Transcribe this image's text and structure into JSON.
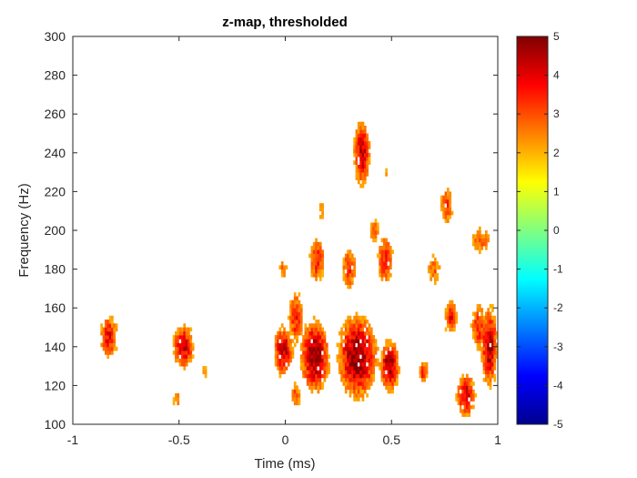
{
  "chart_data": {
    "type": "heatmap",
    "title": "z-map, thresholded",
    "xlabel": "Time (ms)",
    "ylabel": "Frequency (Hz)",
    "xlim": [
      -1,
      1
    ],
    "ylim": [
      100,
      300
    ],
    "x_ticks": [
      {
        "value": -1,
        "label": "-1"
      },
      {
        "value": -0.5,
        "label": "-0.5"
      },
      {
        "value": 0,
        "label": "0"
      },
      {
        "value": 0.5,
        "label": "0.5"
      },
      {
        "value": 1,
        "label": "1"
      }
    ],
    "y_ticks": [
      {
        "value": 100,
        "label": "100"
      },
      {
        "value": 120,
        "label": "120"
      },
      {
        "value": 140,
        "label": "140"
      },
      {
        "value": 160,
        "label": "160"
      },
      {
        "value": 180,
        "label": "180"
      },
      {
        "value": 200,
        "label": "200"
      },
      {
        "value": 220,
        "label": "220"
      },
      {
        "value": 240,
        "label": "240"
      },
      {
        "value": 260,
        "label": "260"
      },
      {
        "value": 280,
        "label": "280"
      },
      {
        "value": 300,
        "label": "300"
      }
    ],
    "colormap": "jet",
    "color_limits": [
      -5,
      5
    ],
    "colorbar_ticks": [
      {
        "value": 5,
        "label": "5"
      },
      {
        "value": 4,
        "label": "4"
      },
      {
        "value": 3,
        "label": "3"
      },
      {
        "value": 2,
        "label": "2"
      },
      {
        "value": 1,
        "label": "1"
      },
      {
        "value": 0,
        "label": "0"
      },
      {
        "value": -1,
        "label": "-1"
      },
      {
        "value": -2,
        "label": "-2"
      },
      {
        "value": -3,
        "label": "-3"
      },
      {
        "value": -4,
        "label": "-4"
      },
      {
        "value": -5,
        "label": "-5"
      }
    ],
    "threshold_note_color": "#ffffff",
    "clusters": [
      {
        "t": -0.83,
        "f": 145,
        "st": 0.035,
        "sf": 9,
        "peak": 3.8
      },
      {
        "t": -0.48,
        "f": 140,
        "st": 0.04,
        "sf": 9,
        "peak": 4.2
      },
      {
        "t": -0.38,
        "f": 127,
        "st": 0.015,
        "sf": 4,
        "peak": 2.6
      },
      {
        "t": -0.51,
        "f": 113,
        "st": 0.02,
        "sf": 5,
        "peak": 2.5
      },
      {
        "t": -0.01,
        "f": 180,
        "st": 0.025,
        "sf": 6,
        "peak": 2.6
      },
      {
        "t": -0.01,
        "f": 138,
        "st": 0.035,
        "sf": 10,
        "peak": 4.4
      },
      {
        "t": 0.05,
        "f": 155,
        "st": 0.03,
        "sf": 12,
        "peak": 3.5
      },
      {
        "t": 0.14,
        "f": 135,
        "st": 0.05,
        "sf": 14,
        "peak": 5.0
      },
      {
        "t": 0.15,
        "f": 185,
        "st": 0.03,
        "sf": 10,
        "peak": 3.6
      },
      {
        "t": 0.17,
        "f": 210,
        "st": 0.015,
        "sf": 6,
        "peak": 2.4
      },
      {
        "t": 0.05,
        "f": 115,
        "st": 0.02,
        "sf": 6,
        "peak": 3.0
      },
      {
        "t": 0.34,
        "f": 135,
        "st": 0.07,
        "sf": 16,
        "peak": 5.0
      },
      {
        "t": 0.36,
        "f": 240,
        "st": 0.03,
        "sf": 13,
        "peak": 4.4
      },
      {
        "t": 0.47,
        "f": 230,
        "st": 0.012,
        "sf": 4,
        "peak": 2.3
      },
      {
        "t": 0.3,
        "f": 180,
        "st": 0.03,
        "sf": 10,
        "peak": 3.3
      },
      {
        "t": 0.47,
        "f": 185,
        "st": 0.03,
        "sf": 11,
        "peak": 3.6
      },
      {
        "t": 0.42,
        "f": 200,
        "st": 0.025,
        "sf": 6,
        "peak": 2.8
      },
      {
        "t": 0.49,
        "f": 130,
        "st": 0.035,
        "sf": 10,
        "peak": 4.8
      },
      {
        "t": 0.65,
        "f": 127,
        "st": 0.02,
        "sf": 5,
        "peak": 3.6
      },
      {
        "t": 0.76,
        "f": 213,
        "st": 0.025,
        "sf": 9,
        "peak": 3.3
      },
      {
        "t": 0.7,
        "f": 180,
        "st": 0.03,
        "sf": 8,
        "peak": 2.8
      },
      {
        "t": 0.78,
        "f": 155,
        "st": 0.025,
        "sf": 8,
        "peak": 3.7
      },
      {
        "t": 0.85,
        "f": 115,
        "st": 0.035,
        "sf": 9,
        "peak": 4.2
      },
      {
        "t": 0.91,
        "f": 150,
        "st": 0.03,
        "sf": 10,
        "peak": 3.6
      },
      {
        "t": 0.96,
        "f": 140,
        "st": 0.03,
        "sf": 16,
        "peak": 4.5
      },
      {
        "t": 0.92,
        "f": 195,
        "st": 0.04,
        "sf": 6,
        "peak": 3.0
      }
    ]
  }
}
